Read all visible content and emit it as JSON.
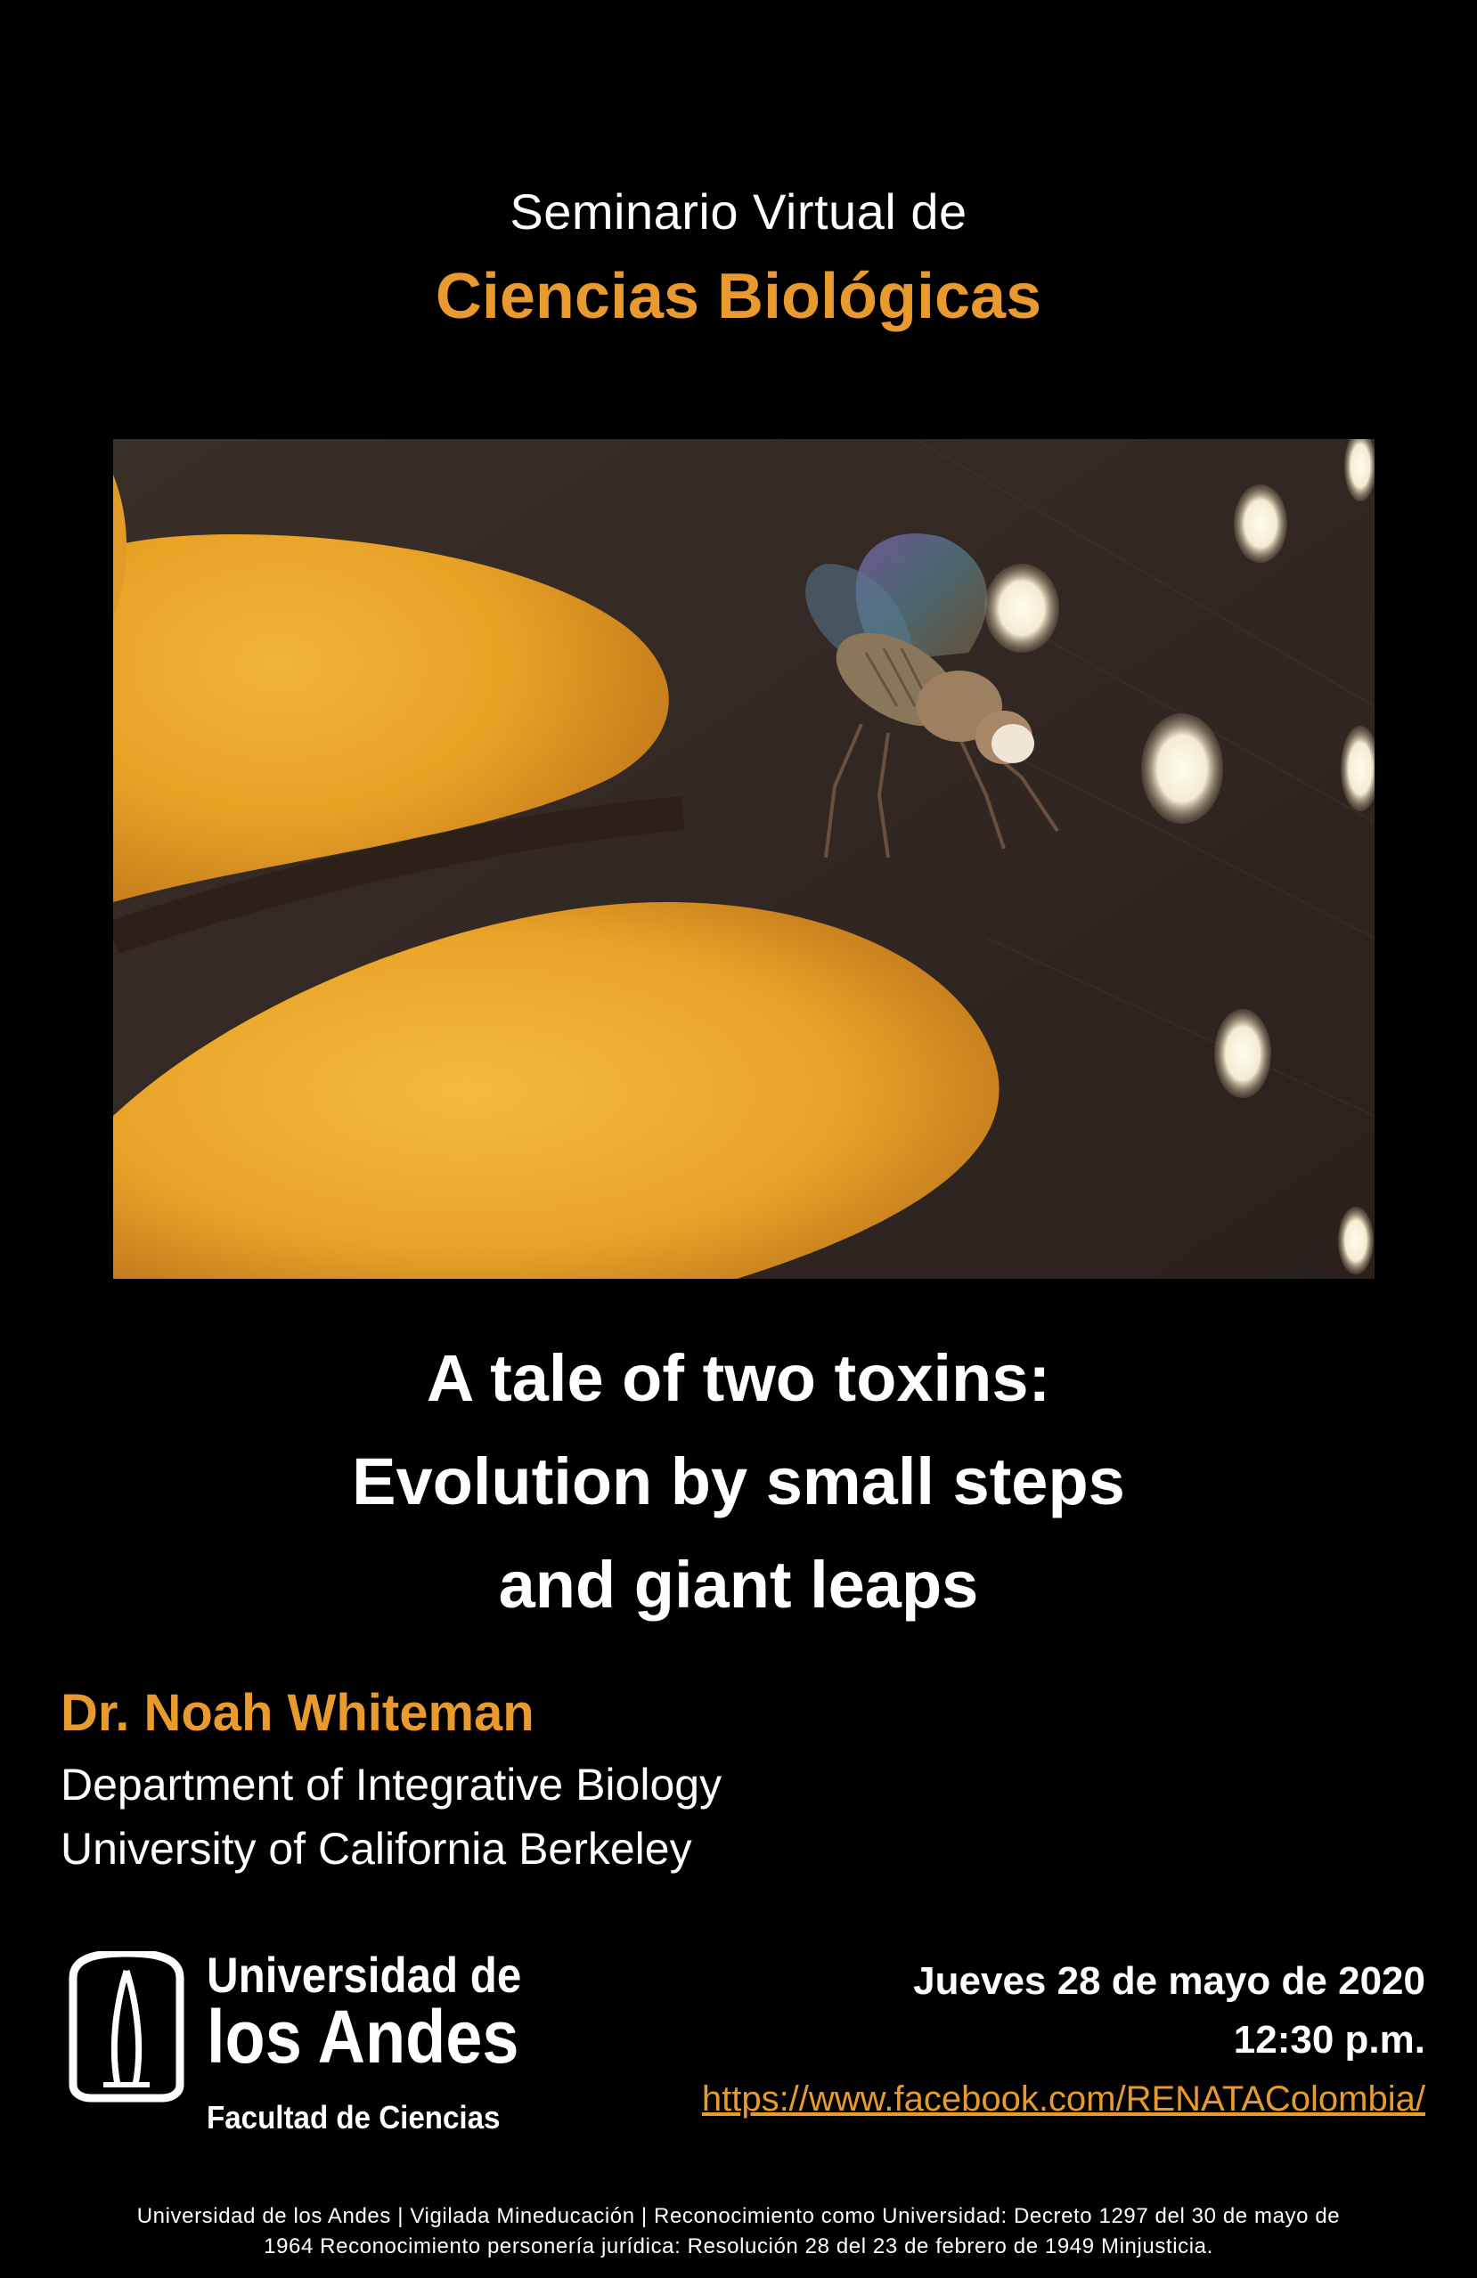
{
  "header": {
    "kicker": "Seminario Virtual de",
    "title": "Ciencias Biológicas"
  },
  "colors": {
    "accent": "#e89a2e",
    "background": "#000000",
    "text": "#ffffff"
  },
  "photo": {
    "subject": "fruit-fly-on-butterfly-wing"
  },
  "talk": {
    "title_lines": [
      "A tale of two toxins:",
      "Evolution by small steps",
      "and giant leaps"
    ]
  },
  "speaker": {
    "name": "Dr. Noah Whiteman",
    "department": "Department of Integrative Biology",
    "institution": "University of California Berkeley"
  },
  "logo": {
    "line1": "Universidad de",
    "line2": "los Andes",
    "line3": "Facultad de Ciencias",
    "icon": "university-crest-icon"
  },
  "event": {
    "date": "Jueves 28 de mayo de 2020",
    "time": "12:30 p.m.",
    "link": "https://www.facebook.com/RENATAColombia/"
  },
  "footer": {
    "line1": "Universidad de los Andes | Vigilada Mineducación | Reconocimiento como Universidad: Decreto 1297 del 30 de mayo de",
    "line2": "1964 Reconocimiento personería jurídica: Resolución 28 del 23 de febrero de 1949 Minjusticia."
  }
}
